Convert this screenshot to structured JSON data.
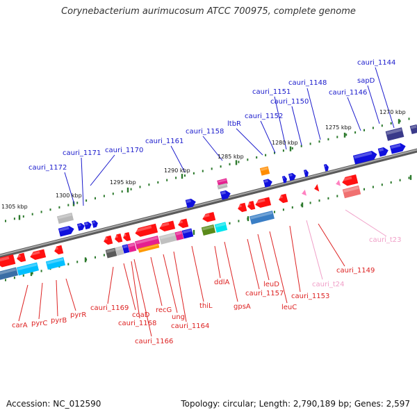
{
  "title": "Corynebacterium aurimucosum ATCC 700975, complete genome",
  "footer": {
    "accession": "Accession: NC_012590",
    "topology": "Topology: circular; Length: 2,790,189 bp; Genes: 2,597"
  },
  "colors": {
    "background": "#ffffff",
    "backbone": "#8a8a8a",
    "forward_label": "#1a1acc",
    "reverse_label": "#dd2222",
    "trna_label": "#f0a0c8",
    "tick": "#2d7a2d"
  },
  "scale_labels": [
    "1270 kbp",
    "1275 kbp",
    "1280 kbp",
    "1285 kbp",
    "1290 kbp",
    "1295 kbp",
    "1300 kbp",
    "1305 kbp"
  ],
  "forward_genes": [
    "cauri_1144",
    "sapD",
    "cauri_1146",
    "cauri_1148",
    "cauri_1150",
    "cauri_1151",
    "cauri_1152",
    "ltbR",
    "cauri_1158",
    "cauri_1161",
    "cauri_1170",
    "cauri_1171",
    "cauri_1172"
  ],
  "reverse_genes": [
    "carA",
    "pyrC",
    "pyrB",
    "pyrR",
    "cauri_1169",
    "coaD",
    "cauri_1168",
    "cauri_1166",
    "recG",
    "ung",
    "cauri_1164",
    "thiL",
    "ddlA",
    "gpsA",
    "cauri_1157",
    "leuD",
    "leuC",
    "cauri_1153",
    "cauri_1149"
  ],
  "trna_genes": [
    "cauri_t24",
    "cauri_t23"
  ]
}
